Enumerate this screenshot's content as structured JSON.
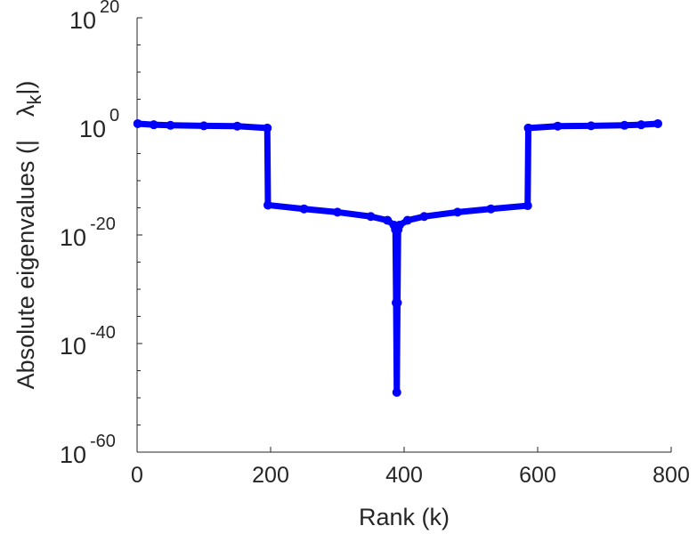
{
  "chart_data": {
    "type": "line",
    "title": "",
    "xlabel": "Rank (k)",
    "ylabel_prefix": "Absolute eigenvalues (|",
    "ylabel_symbol": "λ",
    "ylabel_sub": "k",
    "ylabel_suffix": "|)",
    "xlim": [
      0,
      800
    ],
    "ylim_log10": [
      -60,
      20
    ],
    "yscale": "log",
    "xticks": [
      0,
      200,
      400,
      600,
      800
    ],
    "yticks_log10": [
      20,
      0,
      -20,
      -40,
      -60
    ],
    "ytick_base": "10",
    "grid": false,
    "series": [
      {
        "name": "eigenvalues",
        "color": "#0000ff",
        "k": [
          1,
          25,
          50,
          100,
          150,
          195,
          196,
          250,
          300,
          350,
          375,
          385,
          387,
          388,
          389,
          390,
          391,
          393,
          405,
          430,
          480,
          530,
          585,
          586,
          630,
          680,
          730,
          755,
          780
        ],
        "log10_abs_value": [
          0.5,
          0.3,
          0.2,
          0.1,
          0.05,
          -0.3,
          -14.5,
          -15.2,
          -15.8,
          -16.6,
          -17.3,
          -18.2,
          -19,
          -32.5,
          -49,
          -32.5,
          -19,
          -18.2,
          -17.3,
          -16.6,
          -15.8,
          -15.2,
          -14.6,
          -0.3,
          0.05,
          0.1,
          0.2,
          0.3,
          0.5
        ]
      }
    ]
  }
}
